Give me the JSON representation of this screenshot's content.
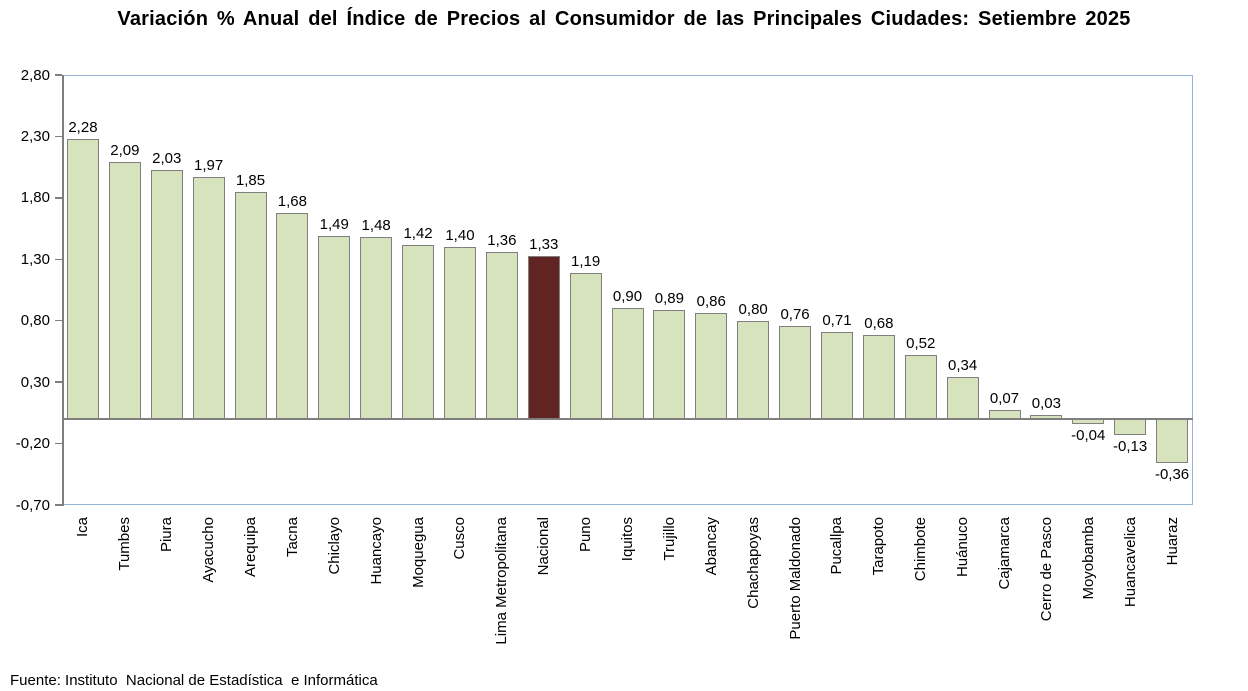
{
  "source_note": "Fuente: Instituto  Nacional de Estadística  e Informática",
  "chart_data": {
    "type": "bar",
    "title": "Variación % Anual del Índice de Precios al Consumidor de las Principales Ciudades: Setiembre 2025",
    "categories": [
      "Ica",
      "Tumbes",
      "Piura",
      "Ayacucho",
      "Arequipa",
      "Tacna",
      "Chiclayo",
      "Huancayo",
      "Moquegua",
      "Cusco",
      "Lima Metropolitana",
      "Nacional",
      "Puno",
      "Iquitos",
      "Trujillo",
      "Abancay",
      "Chachapoyas",
      "Puerto Maldonado",
      "Pucallpa",
      "Tarapoto",
      "Chimbote",
      "Huánuco",
      "Cajamarca",
      "Cerro de Pasco",
      "Moyobamba",
      "Huancavelica",
      "Huaraz"
    ],
    "values": [
      2.28,
      2.09,
      2.03,
      1.97,
      1.85,
      1.68,
      1.49,
      1.48,
      1.42,
      1.4,
      1.36,
      1.33,
      1.19,
      0.9,
      0.89,
      0.86,
      0.8,
      0.76,
      0.71,
      0.68,
      0.52,
      0.34,
      0.07,
      0.03,
      -0.04,
      -0.13,
      -0.36
    ],
    "value_labels": [
      "2,28",
      "2,09",
      "2,03",
      "1,97",
      "1,85",
      "1,68",
      "1,49",
      "1,48",
      "1,42",
      "1,40",
      "1,36",
      "1,33",
      "1,19",
      "0,90",
      "0,89",
      "0,86",
      "0,80",
      "0,76",
      "0,71",
      "0,68",
      "0,52",
      "0,34",
      "0,07",
      "0,03",
      "-0,04",
      "-0,13",
      "-0,36"
    ],
    "highlight_category": "Nacional",
    "xlabel": "",
    "ylabel": "",
    "ylim": [
      -0.7,
      2.8
    ],
    "ytick_values": [
      2.8,
      2.3,
      1.8,
      1.3,
      0.8,
      0.3,
      -0.2,
      -0.7
    ],
    "ytick_labels": [
      "2,80",
      "2,30",
      "1,80",
      "1,30",
      "0,80",
      "0,30",
      "-0,20",
      "-0,70"
    ],
    "decimal_separator": ",",
    "grid": false,
    "legend": "none",
    "bar_color": "#d7e3bd",
    "bar_border_color": "#7f7f7f",
    "highlight_color": "#612423",
    "plot_border_color": "#95b3d7",
    "axis_color": "#7f7f7f"
  }
}
